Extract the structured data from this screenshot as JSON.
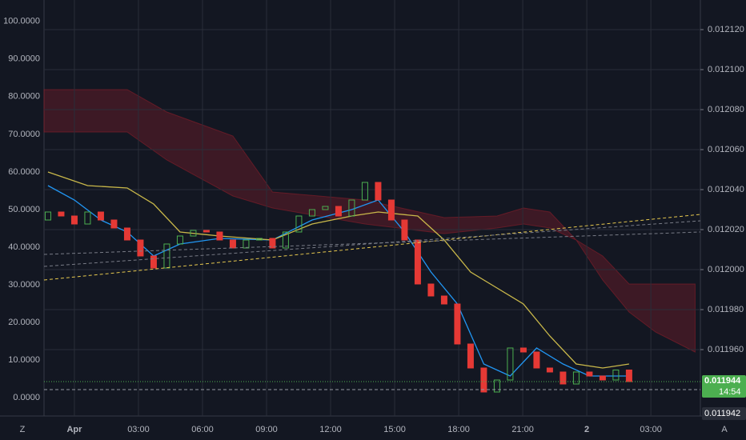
{
  "chart_data": {
    "type": "candlestick",
    "background": "#131722",
    "up_color": "#4caf50",
    "down_color": "#e53935",
    "open": [
      0.0120248,
      0.0120288,
      0.0120268,
      0.0120228,
      0.0120288,
      0.0120248,
      0.0120208,
      0.0120148,
      0.0120068,
      0.0120008,
      0.0120128,
      0.0120168,
      0.0120196,
      0.0120188,
      0.0120148,
      0.0120108,
      0.0120148,
      0.0120156,
      0.0120108,
      0.0120188,
      0.0120268,
      0.01203,
      0.0120316,
      0.0120268,
      0.0120348,
      0.0120436,
      0.0120348,
      0.0120248,
      0.0120148,
      0.0119928,
      0.0119868,
      0.0119828,
      0.0119628,
      0.0119508,
      0.0119388,
      0.0119448,
      0.0119608,
      0.0119588,
      0.0119508,
      0.0119488,
      0.0119428,
      0.0119488,
      0.0119468,
      0.0119448,
      0.0119498
    ],
    "close": [
      0.0120288,
      0.0120268,
      0.0120228,
      0.0120288,
      0.0120248,
      0.0120208,
      0.0120148,
      0.0120068,
      0.0120008,
      0.0120128,
      0.0120168,
      0.0120196,
      0.0120188,
      0.0120148,
      0.0120108,
      0.0120148,
      0.0120156,
      0.0120108,
      0.0120188,
      0.0120268,
      0.01203,
      0.0120316,
      0.0120268,
      0.0120348,
      0.0120436,
      0.0120348,
      0.0120248,
      0.0120148,
      0.0119928,
      0.0119868,
      0.0119828,
      0.0119628,
      0.0119508,
      0.0119388,
      0.0119448,
      0.0119608,
      0.0119588,
      0.0119508,
      0.0119488,
      0.0119428,
      0.0119488,
      0.0119468,
      0.0119448,
      0.0119498,
      0.011944
    ],
    "lines": [
      {
        "color": "#2196f3",
        "x": [
          0,
          2,
          4,
          6,
          8,
          10,
          13,
          17,
          20,
          23,
          25,
          27,
          29,
          31,
          33,
          35,
          37,
          39,
          41,
          44
        ],
        "values": [
          0.012042,
          0.0120348,
          0.0120248,
          0.0120188,
          0.0120068,
          0.0120128,
          0.0120156,
          0.0120148,
          0.0120248,
          0.01203,
          0.0120348,
          0.0120188,
          0.0119988,
          0.0119828,
          0.0119528,
          0.0119468,
          0.0119608,
          0.0119528,
          0.0119468,
          0.0119468
        ]
      },
      {
        "color": "#c9b84a",
        "x": [
          0,
          3,
          6,
          8,
          10,
          13,
          17,
          20,
          23,
          25,
          28,
          30,
          32,
          34,
          36,
          38,
          40,
          42,
          44
        ],
        "values": [
          0.0120488,
          0.012042,
          0.0120408,
          0.0120328,
          0.0120188,
          0.0120168,
          0.0120148,
          0.0120228,
          0.0120268,
          0.0120288,
          0.0120268,
          0.0120148,
          0.0119988,
          0.0119908,
          0.0119828,
          0.0119668,
          0.0119528,
          0.0119508,
          0.0119528
        ]
      }
    ],
    "cloud": {
      "color": "#8b1e2a",
      "x": [
        -0.3,
        6,
        9,
        14,
        17,
        24,
        30,
        34,
        36,
        38,
        40,
        42,
        44,
        46,
        49
      ],
      "upper": [
        0.01209,
        0.01209,
        0.0120788,
        0.0120668,
        0.0120388,
        0.0120348,
        0.012026,
        0.0120268,
        0.0120308,
        0.0120288,
        0.0120148,
        0.0120068,
        0.0119928,
        0.0119928,
        0.0119928
      ],
      "lower": [
        0.0120688,
        0.0120688,
        0.0120548,
        0.0120368,
        0.0120308,
        0.0120228,
        0.012018,
        0.0120208,
        0.0120228,
        0.0120208,
        0.0120148,
        0.0119948,
        0.0119788,
        0.0119688,
        0.0119588
      ]
    },
    "xlim": [
      -0.3,
      49.4
    ],
    "xticks": [
      {
        "value": 2,
        "label": "Apr"
      },
      {
        "value": 6.85,
        "label": "03:00"
      },
      {
        "value": 11.7,
        "label": "06:00"
      },
      {
        "value": 16.55,
        "label": "09:00"
      },
      {
        "value": 21.4,
        "label": "12:00"
      },
      {
        "value": 26.25,
        "label": "15:00"
      },
      {
        "value": 31.1,
        "label": "18:00"
      },
      {
        "value": 35.95,
        "label": "21:00"
      },
      {
        "value": 40.8,
        "label": "2"
      },
      {
        "value": 45.65,
        "label": "03:00"
      }
    ],
    "ylim": [
      -4.9,
      105.7
    ],
    "yticks": [
      {
        "value": 100,
        "label": "100.0000"
      },
      {
        "value": 90,
        "label": "90.0000"
      },
      {
        "value": 80,
        "label": "80.0000"
      },
      {
        "value": 70,
        "label": "70.0000"
      },
      {
        "value": 60,
        "label": "60.0000"
      },
      {
        "value": 50,
        "label": "50.0000"
      },
      {
        "value": 40,
        "label": "40.0000"
      },
      {
        "value": 30,
        "label": "30.0000"
      },
      {
        "value": 20,
        "label": "20.0000"
      },
      {
        "value": 10,
        "label": "10.0000"
      },
      {
        "value": 0,
        "label": "0.0000"
      }
    ],
    "y2lim": [
      0.0119268,
      0.0121348
    ],
    "y2ticks": [
      {
        "value": 0.01212,
        "label": "0.012120"
      },
      {
        "value": 0.0121,
        "label": "0.012100"
      },
      {
        "value": 0.01208,
        "label": "0.012080"
      },
      {
        "value": 0.01206,
        "label": "0.012060"
      },
      {
        "value": 0.01204,
        "label": "0.012040"
      },
      {
        "value": 0.01202,
        "label": "0.012020"
      },
      {
        "value": 0.012,
        "label": "0.012000"
      },
      {
        "value": 0.01198,
        "label": "0.011980"
      },
      {
        "value": 0.01196,
        "label": "0.011960"
      }
    ],
    "grid": true,
    "last_price": {
      "value": 0.011944,
      "label": "0.011944",
      "countdown": "14:54"
    },
    "prev_price": {
      "value": 0.011942,
      "label": "0.011942"
    },
    "corner_left": "Z",
    "corner_right": "A"
  }
}
